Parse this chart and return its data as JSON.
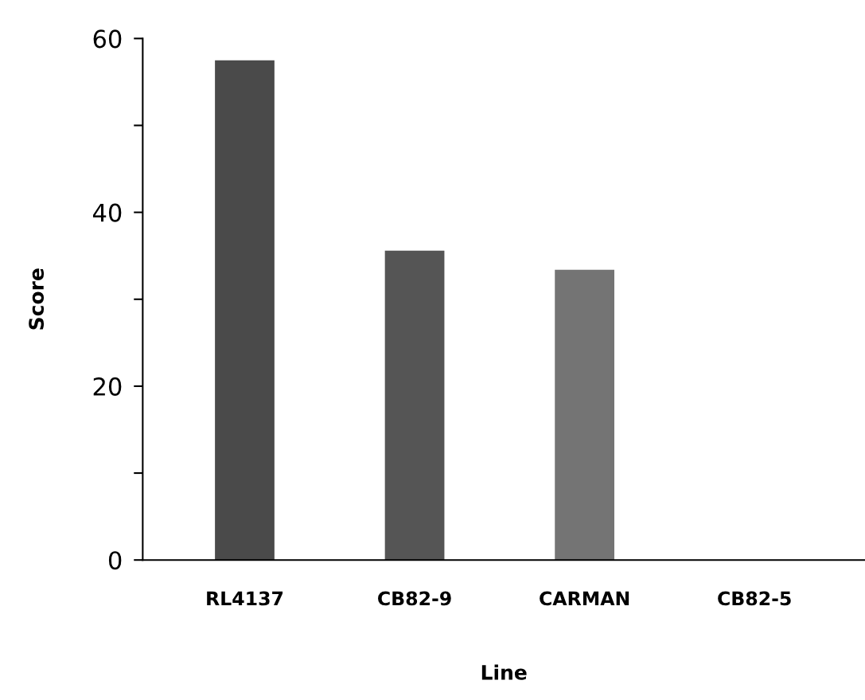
{
  "chart_data": {
    "type": "bar",
    "xlabel": "Line",
    "ylabel": "Score",
    "categories": [
      "RL4137",
      "CB82-9",
      "CARMAN",
      "CB82-5"
    ],
    "values": [
      57.5,
      35.6,
      33.4,
      0
    ],
    "colors": [
      "#4a4a4a",
      "#555555",
      "#747474",
      "#555555"
    ],
    "ylim": [
      0,
      60
    ],
    "yticks": [
      0,
      {
        "value": 10,
        "label": null
      },
      20,
      {
        "value": 30,
        "label": null
      },
      40,
      {
        "value": 50,
        "label": null
      },
      60
    ],
    "grid": false
  }
}
